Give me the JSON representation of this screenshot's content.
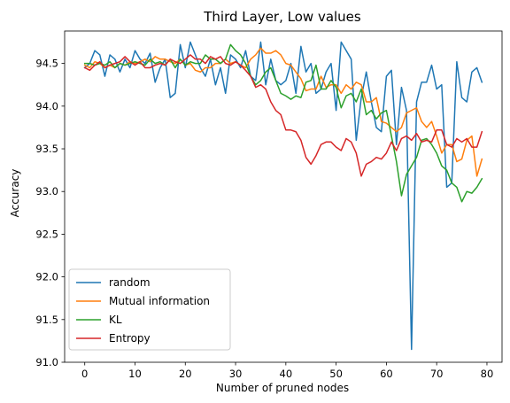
{
  "chart_data": {
    "type": "line",
    "title": "Third Layer, Low values",
    "xlabel": "Number of pruned nodes",
    "ylabel": "Accuracy",
    "xlim": [
      -4,
      83
    ],
    "ylim": [
      91.0,
      94.88
    ],
    "xticks": [
      0,
      10,
      20,
      30,
      40,
      50,
      60,
      70,
      80
    ],
    "yticks": [
      91.0,
      91.5,
      92.0,
      92.5,
      93.0,
      93.5,
      94.0,
      94.5
    ],
    "ytick_labels": [
      "91.0",
      "91.5",
      "92.0",
      "92.5",
      "93.0",
      "93.5",
      "94.0",
      "94.5"
    ],
    "grid": false,
    "legend_position": "lower-left",
    "series": [
      {
        "name": "random",
        "color": "#1f77b4",
        "values": [
          94.45,
          94.5,
          94.65,
          94.6,
          94.35,
          94.6,
          94.55,
          94.4,
          94.55,
          94.45,
          94.65,
          94.55,
          94.5,
          94.62,
          94.28,
          94.45,
          94.55,
          94.1,
          94.15,
          94.72,
          94.45,
          94.75,
          94.6,
          94.45,
          94.35,
          94.55,
          94.25,
          94.45,
          94.15,
          94.6,
          94.55,
          94.45,
          94.65,
          94.35,
          94.3,
          94.75,
          94.25,
          94.55,
          94.3,
          94.25,
          94.3,
          94.5,
          94.15,
          94.7,
          94.4,
          94.5,
          94.15,
          94.2,
          94.4,
          94.5,
          93.95,
          94.75,
          94.65,
          94.55,
          93.6,
          94.1,
          94.4,
          94.05,
          93.75,
          93.7,
          94.35,
          94.42,
          93.55,
          94.22,
          93.95,
          91.15,
          94.05,
          94.28,
          94.28,
          94.48,
          94.2,
          94.25,
          93.05,
          93.1,
          94.52,
          94.1,
          94.05,
          94.4,
          94.45,
          94.28
        ]
      },
      {
        "name": "Mutual information",
        "color": "#ff7f0e",
        "values": [
          94.48,
          94.45,
          94.52,
          94.5,
          94.45,
          94.48,
          94.45,
          94.5,
          94.48,
          94.52,
          94.5,
          94.52,
          94.55,
          94.52,
          94.58,
          94.55,
          94.55,
          94.52,
          94.5,
          94.55,
          94.48,
          94.5,
          94.42,
          94.4,
          94.45,
          94.45,
          94.5,
          94.5,
          94.55,
          94.5,
          94.52,
          94.48,
          94.45,
          94.55,
          94.6,
          94.68,
          94.62,
          94.62,
          94.65,
          94.6,
          94.5,
          94.48,
          94.4,
          94.32,
          94.18,
          94.2,
          94.2,
          94.35,
          94.22,
          94.25,
          94.25,
          94.15,
          94.25,
          94.2,
          94.28,
          94.25,
          94.05,
          94.05,
          94.1,
          93.82,
          93.8,
          93.75,
          93.7,
          93.75,
          93.92,
          93.95,
          93.98,
          93.82,
          93.75,
          93.82,
          93.65,
          93.45,
          93.55,
          93.55,
          93.35,
          93.38,
          93.6,
          93.65,
          93.18,
          93.38
        ]
      },
      {
        "name": "KL",
        "color": "#2ca02c",
        "values": [
          94.5,
          94.5,
          94.48,
          94.5,
          94.48,
          94.52,
          94.45,
          94.5,
          94.48,
          94.5,
          94.52,
          94.5,
          94.48,
          94.55,
          94.5,
          94.52,
          94.48,
          94.55,
          94.45,
          94.55,
          94.48,
          94.52,
          94.5,
          94.5,
          94.6,
          94.55,
          94.55,
          94.5,
          94.55,
          94.72,
          94.65,
          94.6,
          94.5,
          94.35,
          94.25,
          94.3,
          94.4,
          94.45,
          94.3,
          94.15,
          94.12,
          94.08,
          94.12,
          94.1,
          94.28,
          94.3,
          94.48,
          94.2,
          94.2,
          94.3,
          94.22,
          93.98,
          94.12,
          94.15,
          94.05,
          94.2,
          93.9,
          93.95,
          93.85,
          93.92,
          93.95,
          93.65,
          93.35,
          92.95,
          93.2,
          93.3,
          93.4,
          93.6,
          93.62,
          93.55,
          93.45,
          93.3,
          93.25,
          93.1,
          93.05,
          92.88,
          93.0,
          92.98,
          93.05,
          93.15
        ]
      },
      {
        "name": "Entropy",
        "color": "#d62728",
        "values": [
          94.45,
          94.42,
          94.48,
          94.52,
          94.45,
          94.48,
          94.5,
          94.52,
          94.58,
          94.52,
          94.48,
          94.52,
          94.45,
          94.45,
          94.48,
          94.5,
          94.48,
          94.55,
          94.52,
          94.5,
          94.55,
          94.6,
          94.55,
          94.55,
          94.5,
          94.58,
          94.55,
          94.58,
          94.5,
          94.48,
          94.52,
          94.48,
          94.42,
          94.35,
          94.22,
          94.25,
          94.2,
          94.05,
          93.95,
          93.9,
          93.72,
          93.72,
          93.7,
          93.6,
          93.4,
          93.32,
          93.42,
          93.55,
          93.58,
          93.58,
          93.52,
          93.48,
          93.62,
          93.58,
          93.45,
          93.18,
          93.32,
          93.35,
          93.4,
          93.38,
          93.45,
          93.58,
          93.48,
          93.62,
          93.65,
          93.6,
          93.68,
          93.58,
          93.6,
          93.58,
          93.72,
          93.72,
          93.55,
          93.52,
          93.62,
          93.58,
          93.62,
          93.52,
          93.52,
          93.7
        ]
      }
    ]
  }
}
